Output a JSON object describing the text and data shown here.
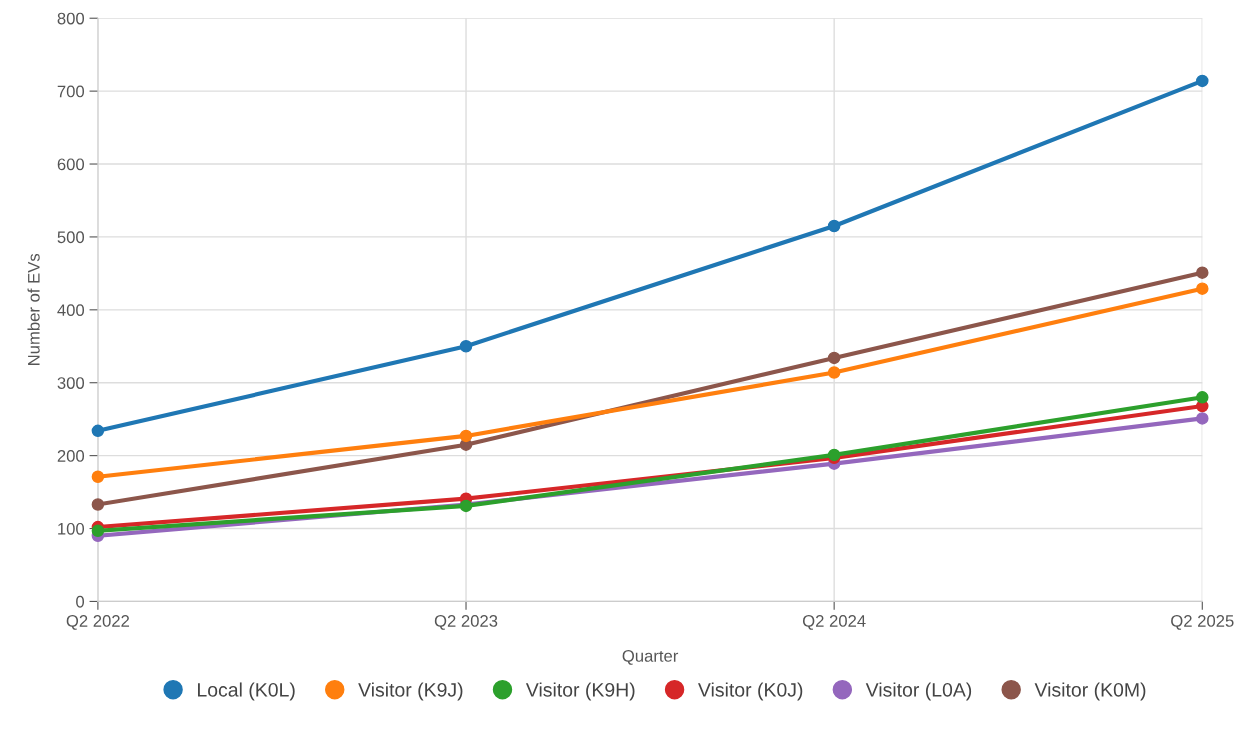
{
  "chart_data": {
    "type": "line",
    "xlabel": "Quarter",
    "ylabel": "Number of EVs",
    "categories": [
      "Q2 2022",
      "Q2 2023",
      "Q2 2024",
      "Q2 2025"
    ],
    "series": [
      {
        "name": "Local (K0L)",
        "color": "#1f77b4",
        "values": [
          234,
          350,
          515,
          714
        ]
      },
      {
        "name": "Visitor (K9J)",
        "color": "#ff7f0e",
        "values": [
          171,
          227,
          314,
          429
        ]
      },
      {
        "name": "Visitor (K9H)",
        "color": "#2ca02c",
        "values": [
          97,
          131,
          201,
          280
        ]
      },
      {
        "name": "Visitor (K0J)",
        "color": "#d62728",
        "values": [
          102,
          141,
          197,
          268
        ]
      },
      {
        "name": "Visitor (L0A)",
        "color": "#9467bd",
        "values": [
          90,
          133,
          189,
          251
        ]
      },
      {
        "name": "Visitor (K0M)",
        "color": "#8c564b",
        "values": [
          133,
          215,
          334,
          451
        ]
      }
    ],
    "ylim": [
      0,
      800
    ],
    "yticks": [
      0,
      100,
      200,
      300,
      400,
      500,
      600,
      700,
      800
    ],
    "grid": true,
    "legend": "bottom",
    "marker": "circle",
    "line_style": "solid"
  }
}
